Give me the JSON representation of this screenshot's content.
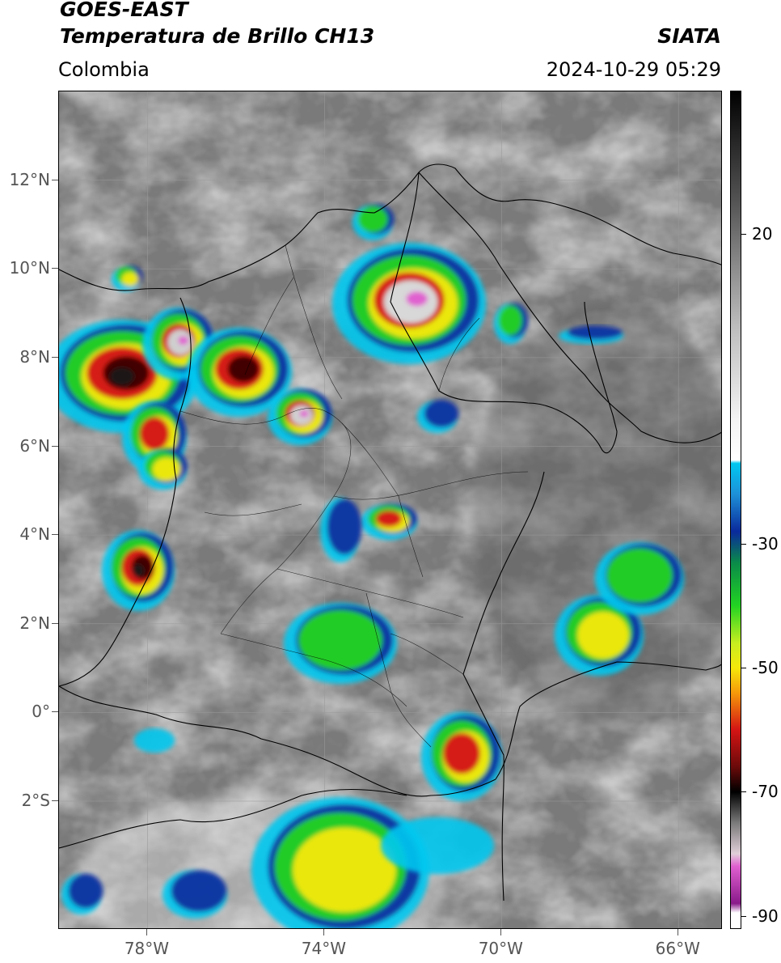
{
  "header": {
    "satellite": "GOES-EAST",
    "product": "Temperatura de Brillo CH13",
    "brand": "SIATA",
    "region": "Colombia",
    "timestamp": "2024-10-29 05:29"
  },
  "map": {
    "lat_labels": [
      "12°N",
      "10°N",
      "8°N",
      "6°N",
      "4°N",
      "2°N",
      "0°",
      "2°S"
    ],
    "lat_values": [
      12,
      10,
      8,
      6,
      4,
      2,
      0,
      -2
    ],
    "lon_labels": [
      "78°W",
      "74°W",
      "70°W",
      "66°W"
    ],
    "lon_values": [
      -78,
      -74,
      -70,
      -66
    ],
    "extent": {
      "lon_min": -80,
      "lon_max": -65,
      "lat_min": -4.9,
      "lat_max": 14
    }
  },
  "colorbar": {
    "labels": [
      "20",
      "-30",
      "-50",
      "-70",
      "-90"
    ],
    "values": [
      20,
      -30,
      -50,
      -70,
      -90
    ],
    "range": [
      -92,
      43
    ],
    "colors": {
      "warm_gray": "#6e6e6e",
      "cold_cyan": "#00c8f0",
      "deep_blue": "#0a2a9c",
      "green": "#22d422",
      "yellow": "#f5e80a",
      "red": "#d41414",
      "black": "#000000",
      "pink": "#e060d0",
      "purple": "#8a1a8a"
    }
  }
}
